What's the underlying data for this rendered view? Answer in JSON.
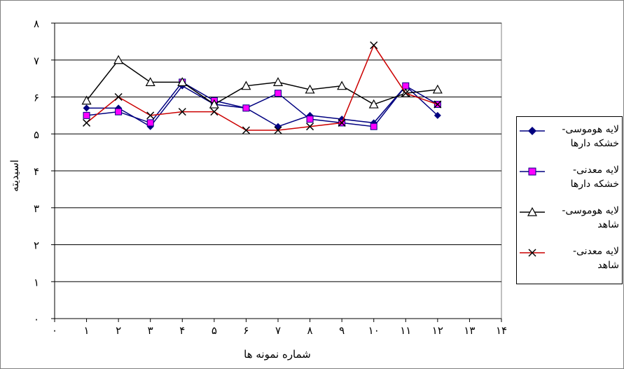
{
  "chart_data": {
    "type": "line",
    "title": "",
    "xlabel": "شماره نمونه ها",
    "ylabel": "اسیدیته",
    "xlim": [
      0,
      14
    ],
    "ylim": [
      0,
      8
    ],
    "x_tick_labels": [
      "۰",
      "۱",
      "۲",
      "۳",
      "۴",
      "۵",
      "۶",
      "۷",
      "۸",
      "۹",
      "۱۰",
      "۱۱",
      "۱۲",
      "۱۳",
      "۱۴"
    ],
    "y_tick_labels": [
      "۰",
      "۱",
      "۲",
      "۳",
      "۴",
      "۵",
      "۶",
      "۷",
      "۸"
    ],
    "grid": "horizontal",
    "legend_position": "right",
    "x": [
      1,
      2,
      3,
      4,
      5,
      6,
      7,
      8,
      9,
      10,
      11,
      12
    ],
    "series": [
      {
        "name": "لایه هوموسی- خشکه دارها",
        "color": "#000080",
        "marker": "diamond",
        "values": [
          5.7,
          5.7,
          5.2,
          6.3,
          5.8,
          5.7,
          5.2,
          5.5,
          5.4,
          5.3,
          6.3,
          5.5
        ]
      },
      {
        "name": "لایه معدنی- خشکه دارها",
        "color": "#000080",
        "marker_color": "#ff00ff",
        "marker": "square",
        "values": [
          5.5,
          5.6,
          5.3,
          6.4,
          5.9,
          5.7,
          6.1,
          5.4,
          5.3,
          5.2,
          6.3,
          5.8
        ]
      },
      {
        "name": "لایه هوموسی- شاهد",
        "color": "#000000",
        "marker": "triangle",
        "values": [
          5.9,
          7.0,
          6.4,
          6.4,
          5.8,
          6.3,
          6.4,
          6.2,
          6.3,
          5.8,
          6.1,
          6.2
        ]
      },
      {
        "name": "لایه معدنی- شاهد",
        "color": "#cc0000",
        "marker": "x",
        "values": [
          5.3,
          6.0,
          5.5,
          5.6,
          5.6,
          5.1,
          5.1,
          5.2,
          5.3,
          7.4,
          6.1,
          5.8
        ]
      }
    ]
  },
  "legend": {
    "items": [
      {
        "line1": "لایه هوموسی-",
        "line2": "خشکه دارها"
      },
      {
        "line1": "لایه معدنی-",
        "line2": "خشکه دارها"
      },
      {
        "line1": "لایه هوموسی-",
        "line2": "شاهد"
      },
      {
        "line1": "لایه معدنی-",
        "line2": "شاهد"
      }
    ]
  }
}
